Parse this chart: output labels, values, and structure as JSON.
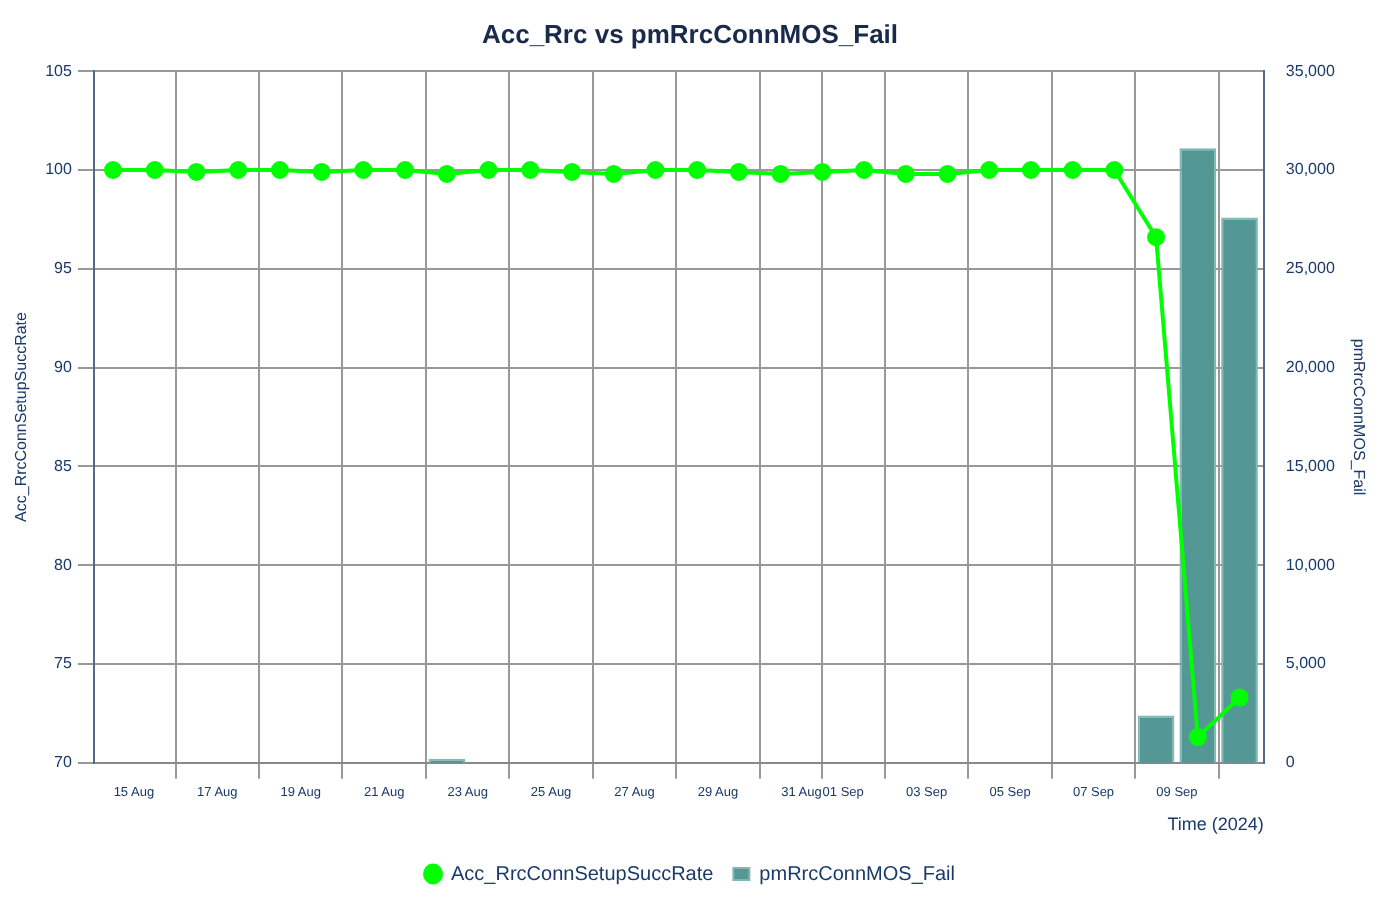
{
  "chart_data": {
    "type": "bar",
    "title": "Acc_Rrc vs pmRrcConnMOS_Fail",
    "xlabel": "Time (2024)",
    "ylabel": "Acc_RrcConnSetupSuccRate",
    "y2label": "pmRrcConnMOS_Fail",
    "x": [
      "2024-08-14T12:00",
      "2024-08-15T12:00",
      "2024-08-16T12:00",
      "2024-08-17T12:00",
      "2024-08-18T12:00",
      "2024-08-19T12:00",
      "2024-08-20T12:00",
      "2024-08-21T12:00",
      "2024-08-22T12:00",
      "2024-08-23T12:00",
      "2024-08-24T12:00",
      "2024-08-25T12:00",
      "2024-08-26T12:00",
      "2024-08-27T12:00",
      "2024-08-28T12:00",
      "2024-08-29T12:00",
      "2024-08-30T12:00",
      "2024-08-31T12:00",
      "2024-09-01T12:00",
      "2024-09-02T12:00",
      "2024-09-03T12:00",
      "2024-09-04T12:00",
      "2024-09-05T12:00",
      "2024-09-06T12:00",
      "2024-09-07T12:00",
      "2024-09-08T12:00",
      "2024-09-09T12:00",
      "2024-09-10T12:00"
    ],
    "series": [
      {
        "name": "Acc_RrcConnSetupSuccRate",
        "type": "line",
        "color": "#00ff00",
        "values": [
          100,
          100,
          99.9,
          100,
          100,
          99.9,
          100,
          100,
          99.8,
          100,
          100,
          99.9,
          99.8,
          100,
          100,
          99.9,
          99.8,
          99.9,
          100,
          99.8,
          99.8,
          100,
          100,
          100,
          100,
          96.6,
          71.3,
          73.3
        ]
      },
      {
        "name": "pmRrcConnMOS_Fail",
        "axis": "y2",
        "color": "#549895",
        "values": [
          0,
          0,
          0,
          0,
          0,
          0,
          0,
          0,
          200,
          0,
          0,
          0,
          0,
          0,
          0,
          0,
          0,
          0,
          0,
          0,
          0,
          0,
          0,
          0,
          0,
          2400,
          31100,
          27600
        ]
      }
    ],
    "xlim": [
      "2024-08-14T01:00",
      "2024-09-11T02:00"
    ],
    "xticks": [
      {
        "value": "2024-08-15",
        "label": "15 Aug"
      },
      {
        "value": "2024-08-17",
        "label": "17 Aug"
      },
      {
        "value": "2024-08-19",
        "label": "19 Aug"
      },
      {
        "value": "2024-08-21",
        "label": "21 Aug"
      },
      {
        "value": "2024-08-23",
        "label": "23 Aug"
      },
      {
        "value": "2024-08-25",
        "label": "25 Aug"
      },
      {
        "value": "2024-08-27",
        "label": "27 Aug"
      },
      {
        "value": "2024-08-29",
        "label": "29 Aug"
      },
      {
        "value": "2024-08-31",
        "label": "31 Aug"
      },
      {
        "value": "2024-09-01",
        "label": "01 Sep"
      },
      {
        "value": "2024-09-03",
        "label": "03 Sep"
      },
      {
        "value": "2024-09-05",
        "label": "05 Sep"
      },
      {
        "value": "2024-09-07",
        "label": "07 Sep"
      },
      {
        "value": "2024-09-09",
        "label": "09 Sep"
      }
    ],
    "ylim": [
      70,
      105
    ],
    "yticks": [
      70,
      75,
      80,
      85,
      90,
      95,
      100,
      105
    ],
    "y2lim": [
      0,
      35000
    ],
    "y2ticks": [
      {
        "value": 0,
        "label": "0"
      },
      {
        "value": 5000,
        "label": "5,000"
      },
      {
        "value": 10000,
        "label": "10,000"
      },
      {
        "value": 15000,
        "label": "15,000"
      },
      {
        "value": 20000,
        "label": "20,000"
      },
      {
        "value": 25000,
        "label": "25,000"
      },
      {
        "value": 30000,
        "label": "30,000"
      },
      {
        "value": 35000,
        "label": "35,000"
      }
    ],
    "grid": true,
    "legend": "bottom",
    "marker": "circle",
    "line_style": "solid"
  }
}
